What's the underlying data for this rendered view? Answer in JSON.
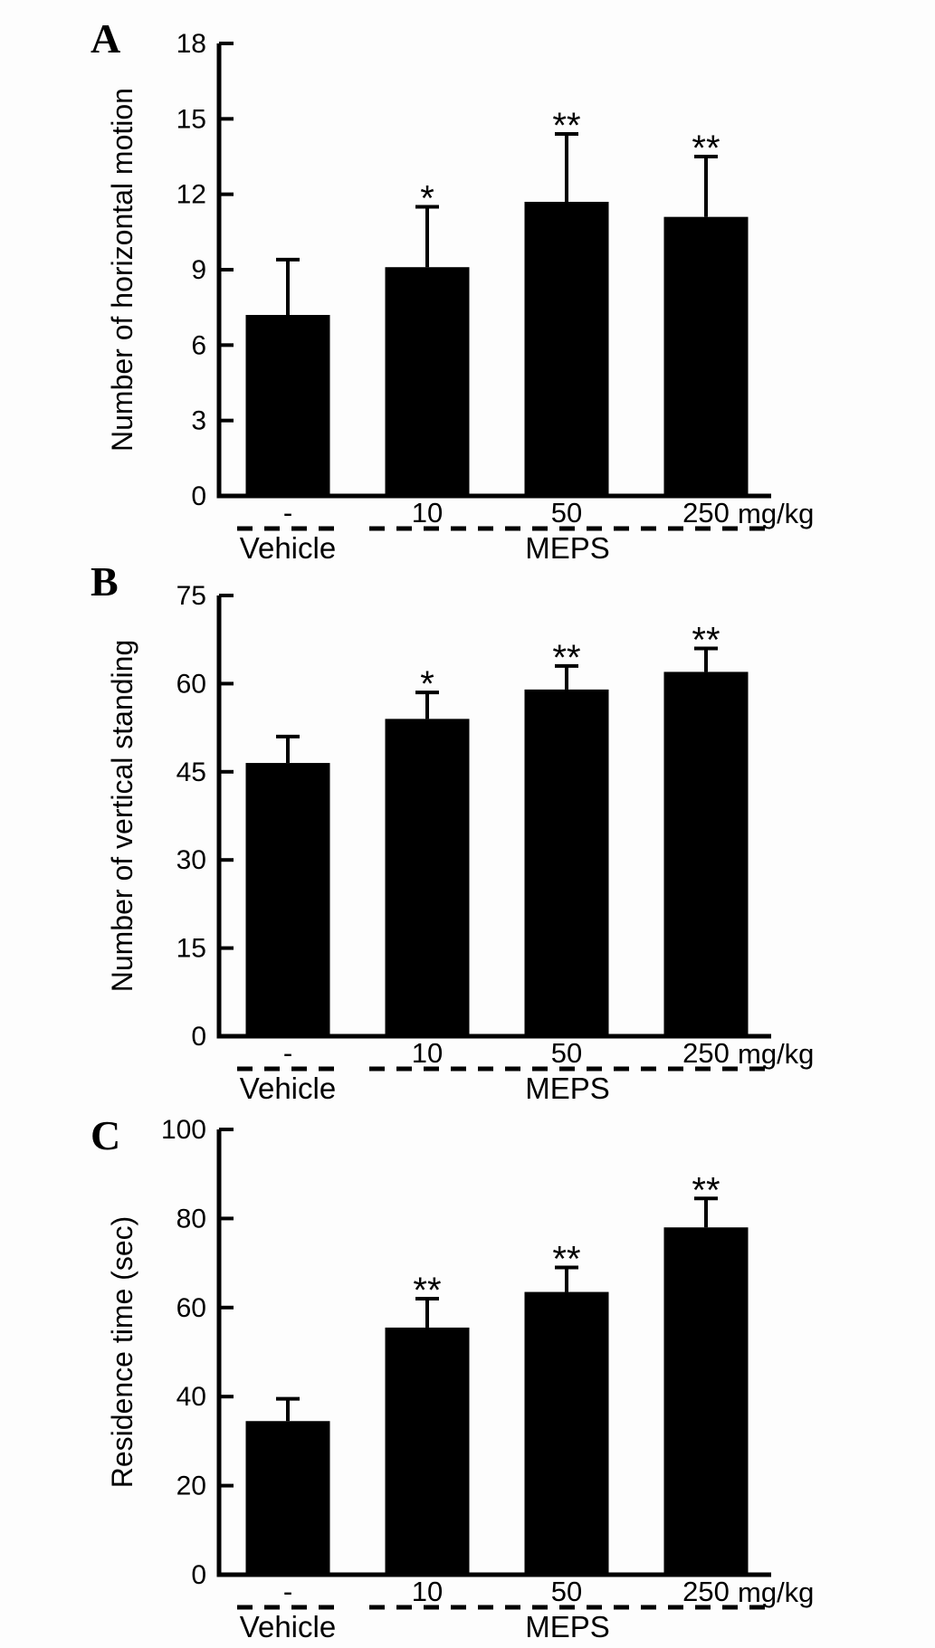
{
  "figure": {
    "background": "#fdfdfd",
    "bar_color": "#000000",
    "axis_color": "#000000",
    "error_bar_color": "#000000",
    "text_color": "#000000"
  },
  "chart_data": [
    {
      "panel_label": "A",
      "type": "bar",
      "title": "",
      "xlabel": "",
      "ylabel": "Number of horizontal motion",
      "ylim": [
        0,
        18
      ],
      "yticks": [
        0,
        3,
        6,
        9,
        12,
        15,
        18
      ],
      "categories": [
        "-",
        "10",
        "50",
        "250"
      ],
      "x_unit_label": "mg/kg",
      "values": [
        7.2,
        9.1,
        11.7,
        11.1
      ],
      "errors_plus": [
        2.2,
        2.4,
        2.7,
        2.4
      ],
      "significance": [
        "",
        "*",
        "**",
        "**"
      ],
      "group_labels": [
        {
          "label": "Vehicle",
          "bar_indexes": [
            0
          ]
        },
        {
          "label": "MEPS",
          "bar_indexes": [
            1,
            2,
            3
          ]
        }
      ],
      "grid": false,
      "legend_position": "none"
    },
    {
      "panel_label": "B",
      "type": "bar",
      "title": "",
      "xlabel": "",
      "ylabel": "Number of vertical standing",
      "ylim": [
        0,
        75
      ],
      "yticks": [
        0,
        15,
        30,
        45,
        60,
        75
      ],
      "categories": [
        "-",
        "10",
        "50",
        "250"
      ],
      "x_unit_label": "mg/kg",
      "values": [
        46.5,
        54,
        59,
        62
      ],
      "errors_plus": [
        4.5,
        4.5,
        4,
        4
      ],
      "significance": [
        "",
        "*",
        "**",
        "**"
      ],
      "group_labels": [
        {
          "label": "Vehicle",
          "bar_indexes": [
            0
          ]
        },
        {
          "label": "MEPS",
          "bar_indexes": [
            1,
            2,
            3
          ]
        }
      ],
      "grid": false,
      "legend_position": "none"
    },
    {
      "panel_label": "C",
      "type": "bar",
      "title": "",
      "xlabel": "",
      "ylabel": "Residence time (sec)",
      "ylim": [
        0,
        100
      ],
      "yticks": [
        0,
        20,
        40,
        60,
        80,
        100
      ],
      "categories": [
        "-",
        "10",
        "50",
        "250"
      ],
      "x_unit_label": "mg/kg",
      "values": [
        34.5,
        55.5,
        63.5,
        78
      ],
      "errors_plus": [
        5,
        6.5,
        5.5,
        6.5
      ],
      "significance": [
        "",
        "**",
        "**",
        "**"
      ],
      "group_labels": [
        {
          "label": "Vehicle",
          "bar_indexes": [
            0
          ]
        },
        {
          "label": "MEPS",
          "bar_indexes": [
            1,
            2,
            3
          ]
        }
      ],
      "grid": false,
      "legend_position": "none"
    }
  ]
}
